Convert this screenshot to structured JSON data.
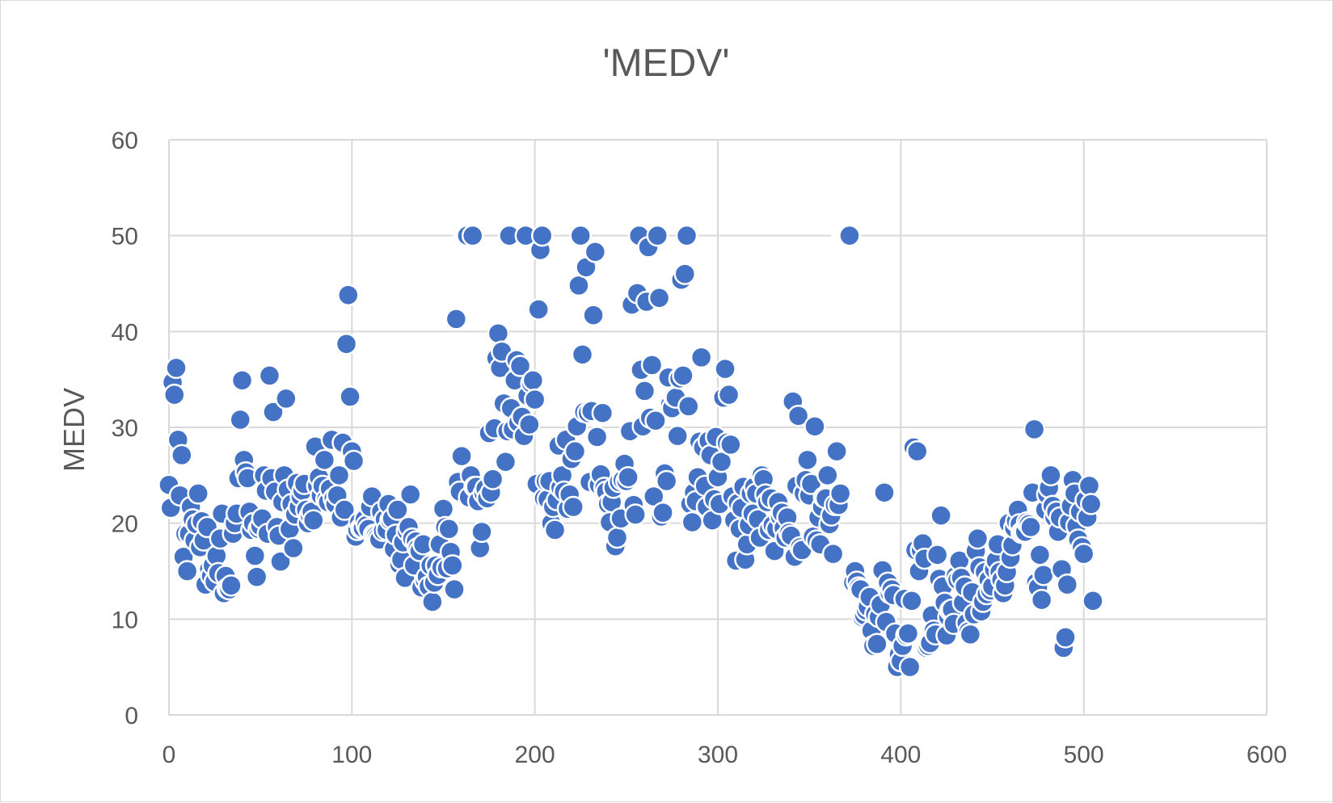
{
  "chart_data": {
    "type": "scatter",
    "title": "'MEDV'",
    "xlabel": "",
    "ylabel": "MEDV",
    "xlim": [
      0,
      600
    ],
    "ylim": [
      0,
      60
    ],
    "x_ticks": [
      "0",
      "100",
      "200",
      "300",
      "400",
      "500",
      "600"
    ],
    "y_ticks": [
      "0",
      "10",
      "20",
      "30",
      "40",
      "50",
      "60"
    ],
    "grid": true,
    "legend": "none",
    "marker_color": "#4472c4",
    "series": [
      {
        "x": [
          0,
          1,
          2,
          3,
          4,
          5,
          6,
          7,
          8,
          9,
          10,
          11,
          12,
          13,
          14,
          15,
          16,
          17,
          18,
          19,
          20,
          21,
          22,
          23,
          24,
          25,
          26,
          27,
          28,
          29,
          30,
          31,
          32,
          33,
          34,
          35,
          36,
          37,
          38,
          39,
          40,
          41,
          42,
          43,
          44,
          45,
          46,
          47,
          48,
          49,
          50,
          51,
          52,
          53,
          54,
          55,
          56,
          57,
          58,
          59,
          60,
          61,
          62,
          63,
          64,
          65,
          66,
          67,
          68,
          69,
          70,
          71,
          72,
          73,
          74,
          75,
          76,
          77,
          78,
          79,
          80,
          81,
          82,
          83,
          84,
          85,
          86,
          87,
          88,
          89,
          90,
          91,
          92,
          93,
          94,
          95,
          96,
          97,
          98,
          99,
          100,
          101,
          102,
          103,
          104,
          105,
          106,
          107,
          108,
          109,
          110,
          111,
          112,
          113,
          114,
          115,
          116,
          117,
          118,
          119,
          120,
          121,
          122,
          123,
          124,
          125,
          126,
          127,
          128,
          129,
          130,
          131,
          132,
          133,
          134,
          135,
          136,
          137,
          138,
          139,
          140,
          141,
          142,
          143,
          144,
          145,
          146,
          147,
          148,
          149,
          150,
          151,
          152,
          153,
          154,
          155,
          156,
          157,
          158,
          159,
          160,
          161,
          162,
          163,
          164,
          165,
          166,
          167,
          168,
          169,
          170,
          171,
          172,
          173,
          174,
          175,
          176,
          177,
          178,
          179,
          180,
          181,
          182,
          183,
          184,
          185,
          186,
          187,
          188,
          189,
          190,
          191,
          192,
          193,
          194,
          195,
          196,
          197,
          198,
          199,
          200,
          201,
          202,
          203,
          204,
          205,
          206,
          207,
          208,
          209,
          210,
          211,
          212,
          213,
          214,
          215,
          216,
          217,
          218,
          219,
          220,
          221,
          222,
          223,
          224,
          225,
          226,
          227,
          228,
          229,
          230,
          231,
          232,
          233,
          234,
          235,
          236,
          237,
          238,
          239,
          240,
          241,
          242,
          243,
          244,
          245,
          246,
          247,
          248,
          249,
          250,
          251,
          252,
          253,
          254,
          255,
          256,
          257,
          258,
          259,
          260,
          261,
          262,
          263,
          264,
          265,
          266,
          267,
          268,
          269,
          270,
          271,
          272,
          273,
          274,
          275,
          276,
          277,
          278,
          279,
          280,
          281,
          282,
          283,
          284,
          285,
          286,
          287,
          288,
          289,
          290,
          291,
          292,
          293,
          294,
          295,
          296,
          297,
          298,
          299,
          300,
          301,
          302,
          303,
          304,
          305,
          306,
          307,
          308,
          309,
          310,
          311,
          312,
          313,
          314,
          315,
          316,
          317,
          318,
          319,
          320,
          321,
          322,
          323,
          324,
          325,
          326,
          327,
          328,
          329,
          330,
          331,
          332,
          333,
          334,
          335,
          336,
          337,
          338,
          339,
          340,
          341,
          342,
          343,
          344,
          345,
          346,
          347,
          348,
          349,
          350,
          351,
          352,
          353,
          354,
          355,
          356,
          357,
          358,
          359,
          360,
          361,
          362,
          363,
          364,
          365,
          366,
          367,
          368,
          369,
          370,
          371,
          372,
          373,
          374,
          375,
          376,
          377,
          378,
          379,
          380,
          381,
          382,
          383,
          384,
          385,
          386,
          387,
          388,
          389,
          390,
          391,
          392,
          393,
          394,
          395,
          396,
          397,
          398,
          399,
          400,
          401,
          402,
          403,
          404,
          405,
          406,
          407,
          408,
          409,
          410,
          411,
          412,
          413,
          414,
          415,
          416,
          417,
          418,
          419,
          420,
          421,
          422,
          423,
          424,
          425,
          426,
          427,
          428,
          429,
          430,
          431,
          432,
          433,
          434,
          435,
          436,
          437,
          438,
          439,
          440,
          441,
          442,
          443,
          444,
          445,
          446,
          447,
          448,
          449,
          450,
          451,
          452,
          453,
          454,
          455,
          456,
          457,
          458,
          459,
          460,
          461,
          462,
          463,
          464,
          465,
          466,
          467,
          468,
          469,
          470,
          471,
          472,
          473,
          474,
          475,
          476,
          477,
          478,
          479,
          480,
          481,
          482,
          483,
          484,
          485,
          486,
          487,
          488,
          489,
          490,
          491,
          492,
          493,
          494,
          495,
          496,
          497,
          498,
          499,
          500,
          501,
          502,
          503,
          504,
          505
        ],
        "y": [
          24.0,
          21.6,
          34.7,
          33.4,
          36.2,
          28.7,
          22.9,
          27.1,
          16.5,
          18.9,
          15.0,
          18.9,
          21.7,
          20.4,
          18.2,
          19.9,
          23.1,
          17.5,
          20.2,
          18.2,
          13.6,
          19.6,
          15.2,
          14.5,
          15.6,
          13.9,
          16.6,
          14.8,
          18.4,
          21.0,
          12.7,
          14.5,
          13.2,
          13.1,
          13.5,
          18.9,
          20.0,
          21.0,
          24.7,
          30.8,
          34.9,
          26.6,
          25.3,
          24.7,
          21.2,
          19.3,
          20.0,
          16.6,
          14.4,
          19.4,
          19.7,
          20.5,
          25.0,
          23.4,
          18.9,
          35.4,
          24.7,
          31.6,
          23.3,
          19.6,
          18.7,
          16.0,
          22.2,
          25.0,
          33.0,
          23.5,
          19.4,
          22.0,
          17.4,
          20.9,
          24.2,
          21.7,
          22.8,
          23.4,
          24.1,
          21.4,
          20.0,
          20.8,
          21.2,
          20.3,
          28.0,
          23.9,
          24.8,
          22.9,
          23.9,
          26.6,
          22.5,
          22.2,
          23.6,
          28.7,
          22.6,
          22.0,
          22.9,
          25.0,
          20.6,
          28.4,
          21.4,
          38.7,
          43.8,
          33.2,
          27.5,
          26.5,
          18.6,
          19.3,
          20.1,
          19.5,
          19.5,
          20.4,
          19.8,
          19.4,
          21.7,
          22.8,
          18.8,
          18.7,
          18.5,
          18.3,
          21.2,
          19.2,
          20.4,
          19.3,
          22.0,
          20.3,
          20.5,
          17.3,
          18.8,
          21.4,
          15.7,
          16.2,
          18.0,
          14.3,
          19.2,
          19.6,
          23.0,
          18.4,
          15.6,
          18.1,
          17.4,
          17.1,
          13.3,
          17.8,
          14.0,
          14.4,
          13.4,
          15.6,
          11.8,
          13.8,
          15.6,
          14.6,
          17.8,
          15.4,
          21.5,
          19.6,
          15.3,
          19.4,
          17.0,
          15.6,
          13.1,
          41.3,
          24.3,
          23.3,
          27.0,
          50.0,
          50.0,
          50.0,
          22.7,
          25.0,
          50.0,
          23.8,
          23.8,
          22.3,
          17.4,
          19.1,
          23.1,
          23.6,
          22.6,
          29.4,
          23.2,
          24.6,
          29.9,
          37.2,
          39.8,
          36.2,
          37.9,
          32.5,
          26.4,
          29.6,
          50.0,
          32.0,
          29.8,
          34.9,
          37.0,
          30.5,
          36.4,
          31.1,
          29.1,
          50.0,
          33.3,
          30.3,
          34.6,
          34.9,
          32.9,
          24.1,
          42.3,
          48.5,
          50.0,
          22.6,
          24.4,
          22.5,
          24.4,
          20.0,
          21.7,
          19.3,
          22.4,
          28.1,
          23.7,
          25.0,
          23.3,
          28.7,
          21.5,
          23.0,
          26.7,
          21.7,
          27.5,
          30.1,
          44.8,
          50.0,
          37.6,
          31.6,
          46.7,
          31.5,
          24.3,
          31.7,
          41.7,
          48.3,
          29.0,
          24.0,
          25.1,
          31.5,
          23.7,
          23.3,
          22.0,
          20.1,
          22.2,
          23.7,
          17.6,
          18.5,
          24.3,
          20.5,
          24.5,
          26.2,
          24.4,
          24.8,
          29.6,
          42.8,
          21.9,
          20.9,
          44.0,
          50.0,
          36.0,
          30.1,
          33.8,
          43.1,
          48.8,
          31.0,
          36.5,
          22.8,
          30.7,
          50.0,
          43.5,
          20.7,
          21.1,
          25.2,
          24.4,
          35.2,
          32.4,
          32.0,
          33.2,
          33.1,
          29.1,
          35.1,
          45.4,
          35.4,
          46.0,
          50.0,
          32.2,
          22.0,
          20.1,
          23.2,
          22.3,
          24.8,
          28.5,
          37.3,
          27.9,
          23.9,
          21.7,
          28.6,
          27.1,
          20.3,
          22.5,
          29.0,
          24.8,
          22.0,
          26.4,
          33.1,
          36.1,
          28.4,
          33.4,
          28.2,
          22.8,
          20.3,
          16.1,
          22.1,
          19.4,
          21.6,
          23.8,
          16.2,
          17.8,
          19.8,
          23.1,
          21.0,
          23.8,
          23.1,
          20.4,
          18.5,
          25.0,
          24.6,
          23.0,
          22.2,
          19.3,
          22.6,
          19.8,
          17.1,
          19.4,
          22.2,
          20.7,
          21.1,
          19.5,
          18.5,
          20.6,
          19.0,
          18.7,
          32.7,
          16.5,
          23.9,
          31.2,
          17.5,
          17.2,
          23.1,
          24.5,
          26.6,
          22.9,
          24.1,
          18.6,
          30.1,
          18.2,
          20.6,
          17.8,
          21.7,
          22.7,
          22.6,
          25.0,
          19.9,
          20.8,
          16.8,
          21.9,
          27.5,
          21.9,
          23.1,
          50.0,
          50.0,
          50.0,
          50.0,
          50.0,
          13.8,
          13.8,
          15.0,
          13.9,
          13.3,
          13.1,
          10.2,
          10.4,
          10.9,
          11.3,
          12.3,
          8.8,
          7.2,
          10.5,
          7.4,
          10.2,
          11.5,
          15.1,
          23.2,
          9.7,
          13.8,
          12.7,
          13.1,
          12.5,
          8.5,
          5.0,
          6.3,
          5.6,
          7.2,
          12.1,
          8.3,
          8.5,
          5.0,
          11.9,
          27.9,
          17.2,
          27.5,
          15.0,
          17.2,
          17.9,
          16.3,
          7.0,
          7.2,
          7.5,
          10.4,
          8.8,
          8.4,
          16.7,
          14.2,
          20.8,
          13.4,
          11.7,
          8.3,
          10.2,
          10.9,
          11.0,
          9.5,
          14.5,
          14.1,
          16.1,
          14.3,
          11.7,
          13.4,
          9.6,
          8.7,
          8.4,
          12.8,
          10.5,
          17.1,
          18.4,
          15.4,
          10.8,
          11.8,
          14.9,
          12.6,
          14.1,
          13.0,
          13.4,
          15.2,
          16.1,
          17.8,
          14.9,
          14.1,
          12.7,
          13.5,
          14.9,
          20.0,
          16.4,
          17.7,
          19.5,
          20.2,
          21.4,
          19.9,
          19.0,
          19.1,
          19.1,
          20.1,
          19.9,
          19.6,
          23.2,
          29.8,
          13.8,
          13.3,
          16.7,
          12.0,
          14.6,
          21.4,
          23.0,
          23.7,
          25.0,
          21.8,
          20.6,
          21.2,
          19.1,
          20.6,
          15.2,
          7.0,
          8.1,
          13.6,
          20.1,
          21.8,
          24.5,
          23.1,
          19.7,
          18.3,
          21.2,
          17.5,
          16.8,
          22.4,
          20.6,
          23.9,
          22.0,
          11.9
        ]
      }
    ]
  }
}
